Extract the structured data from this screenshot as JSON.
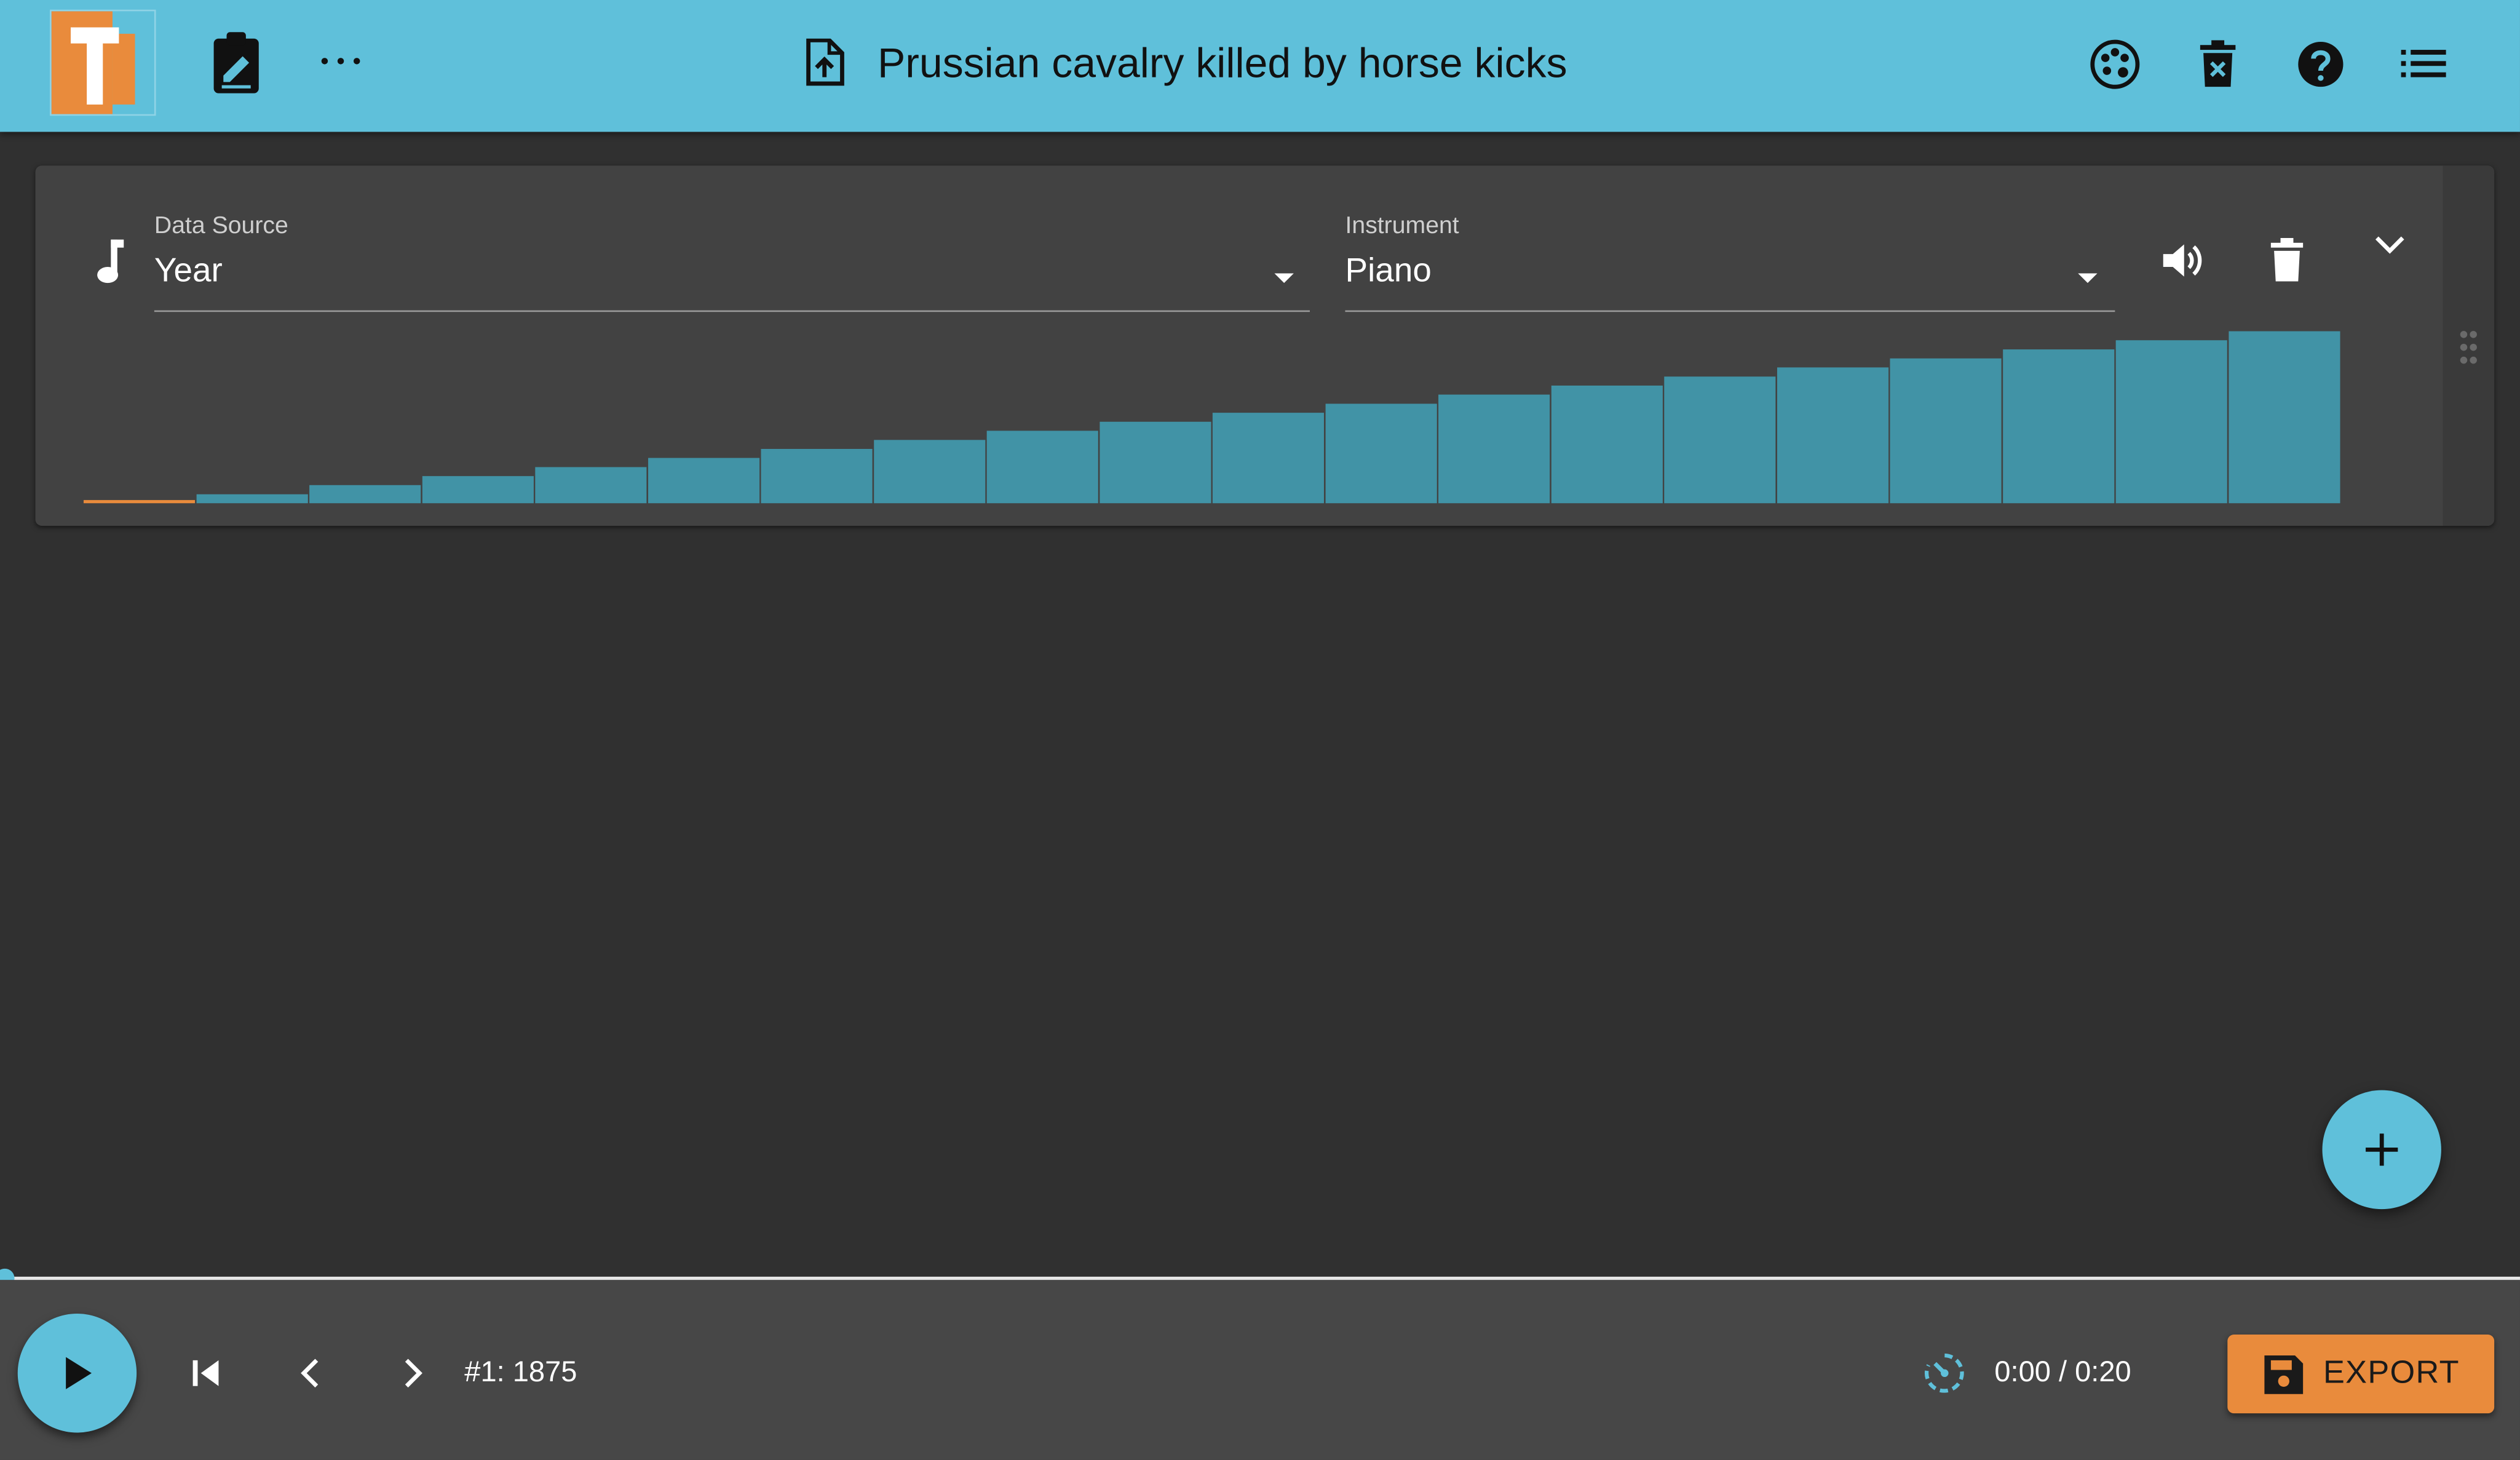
{
  "header": {
    "title": "Prussian cavalry killed by horse kicks",
    "icons": [
      "app-logo",
      "clipboard-edit-icon",
      "more-horiz-icon",
      "file-upload-icon",
      "palette-icon",
      "delete-forever-icon",
      "help-icon",
      "list-icon"
    ]
  },
  "track": {
    "icon": "music-note-icon",
    "data_source_label": "Data Source",
    "data_source_value": "Year",
    "instrument_label": "Instrument",
    "instrument_value": "Piano",
    "actions": [
      "volume-up-icon",
      "delete-icon",
      "chevron-down-icon",
      "drag-handle-icon"
    ]
  },
  "chart_data": {
    "type": "bar",
    "values": [
      1875,
      1876,
      1877,
      1878,
      1879,
      1880,
      1881,
      1882,
      1883,
      1884,
      1885,
      1886,
      1887,
      1888,
      1889,
      1890,
      1891,
      1892,
      1893,
      1894
    ],
    "active_index": 0,
    "active_color": "#e98b3c",
    "bar_color": "#4193a6",
    "ylim": [
      1875,
      1894
    ]
  },
  "player": {
    "position_label": "#1: 1875",
    "time_label": "0:00 / 0:20",
    "progress": 0.0,
    "export_label": "EXPORT"
  },
  "colors": {
    "accent": "#5fc0da",
    "export": "#e98b3c",
    "background": "#303030",
    "card": "#424242"
  }
}
